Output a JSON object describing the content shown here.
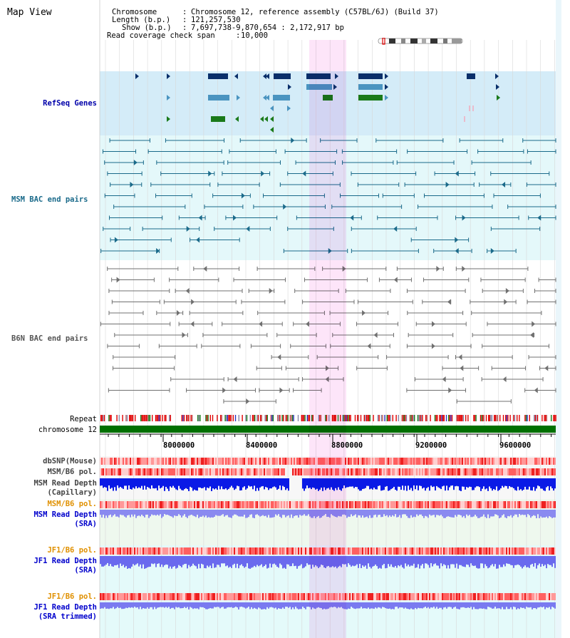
{
  "view": {
    "title": "Map View"
  },
  "info": {
    "chromosome_label": "Chromosome",
    "chromosome_value": "Chromosome 12, reference assembly (C57BL/6J) (Build 37)",
    "length_label": "Length (b.p.)",
    "length_value": "121,257,530",
    "show_label": "Show (b.p.)",
    "show_value": "7,697,738-9,870,654 : 2,172,917 bp",
    "coverage_label": "Read coverage check span",
    "coverage_value": "10,000"
  },
  "tracks": {
    "refseq": "RefSeq Genes",
    "msm_bac": "MSM BAC end pairs",
    "b6n_bac": "B6N BAC end pairs",
    "repeat": "Repeat",
    "chromosome": "chromosome 12",
    "dbsnp": "dbSNP(Mouse)",
    "msm_b6_pol_1": "MSM/B6 pol.",
    "msm_read_depth_cap_1": "MSM Read Depth",
    "msm_read_depth_cap_2": "(Capillary)",
    "msm_b6_pol_2": "MSM/B6 pol.",
    "msm_read_depth_sra_1": "MSM Read Depth",
    "msm_read_depth_sra_2": "(SRA)",
    "jf1_b6_pol_1": "JF1/B6 pol.",
    "jf1_read_depth_sra_1": "JF1 Read Depth",
    "jf1_read_depth_sra_2": "(SRA)",
    "jf1_b6_pol_2": "JF1/B6 pol.",
    "jf1_read_depth_trim_1": "JF1 Read Depth",
    "jf1_read_depth_trim_2": "(SRA trimmed)"
  },
  "axis": {
    "ticks": [
      "8000000",
      "8400000",
      "8800000",
      "9200000",
      "9600000"
    ]
  },
  "colors": {
    "refseq_bg": "#d4ecf8",
    "msm_bg": "#e4f8fa",
    "b6n_bg": "#ffffff",
    "highlight": "#fbd3f5",
    "chromosome_bar": "#007000",
    "msm_bac_color": "#1a6a8a",
    "b6n_bac_color": "#707070",
    "gene_dark": "#0a2f6a",
    "gene_light": "#4a94c0",
    "gene_green": "#1a7a1a",
    "label_refseq": "#0000aa",
    "label_msm": "#1a6a8a",
    "label_b6n": "#555555",
    "label_orange": "#e09000",
    "label_blue": "#0000cc",
    "label_gray": "#444444"
  }
}
